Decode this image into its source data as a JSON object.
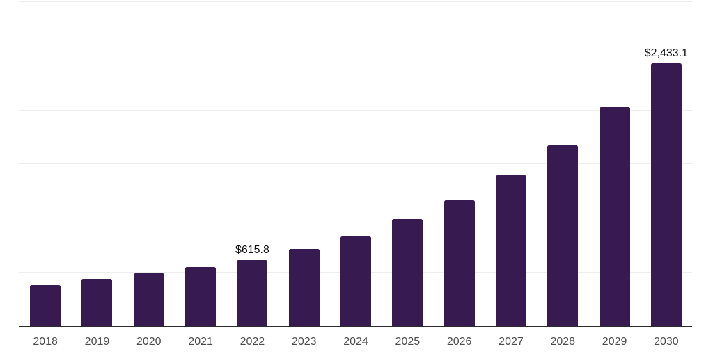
{
  "chart_data": {
    "type": "bar",
    "title": "",
    "xlabel": "",
    "ylabel": "",
    "categories": [
      "2018",
      "2019",
      "2020",
      "2021",
      "2022",
      "2023",
      "2024",
      "2025",
      "2026",
      "2027",
      "2028",
      "2029",
      "2030"
    ],
    "values": [
      385,
      443,
      494,
      552,
      615.8,
      719,
      835,
      995,
      1168,
      1399,
      1675,
      2028,
      2433.1
    ],
    "bar_labels": [
      "",
      "",
      "",
      "",
      "$615.8",
      "",
      "",
      "",
      "",
      "",
      "",
      "",
      "$2,433.1"
    ],
    "ylim": [
      0,
      3000
    ],
    "gridline_step": 500,
    "grid": true,
    "legend": false,
    "y_axis_tick_labels_visible": false
  },
  "colors": {
    "background": "#ffffff",
    "bar": "#361a50",
    "axis_line": "#2b2b2b",
    "gridline": "#ededed",
    "tick_label": "#4c4c4c",
    "data_label": "#111111"
  }
}
